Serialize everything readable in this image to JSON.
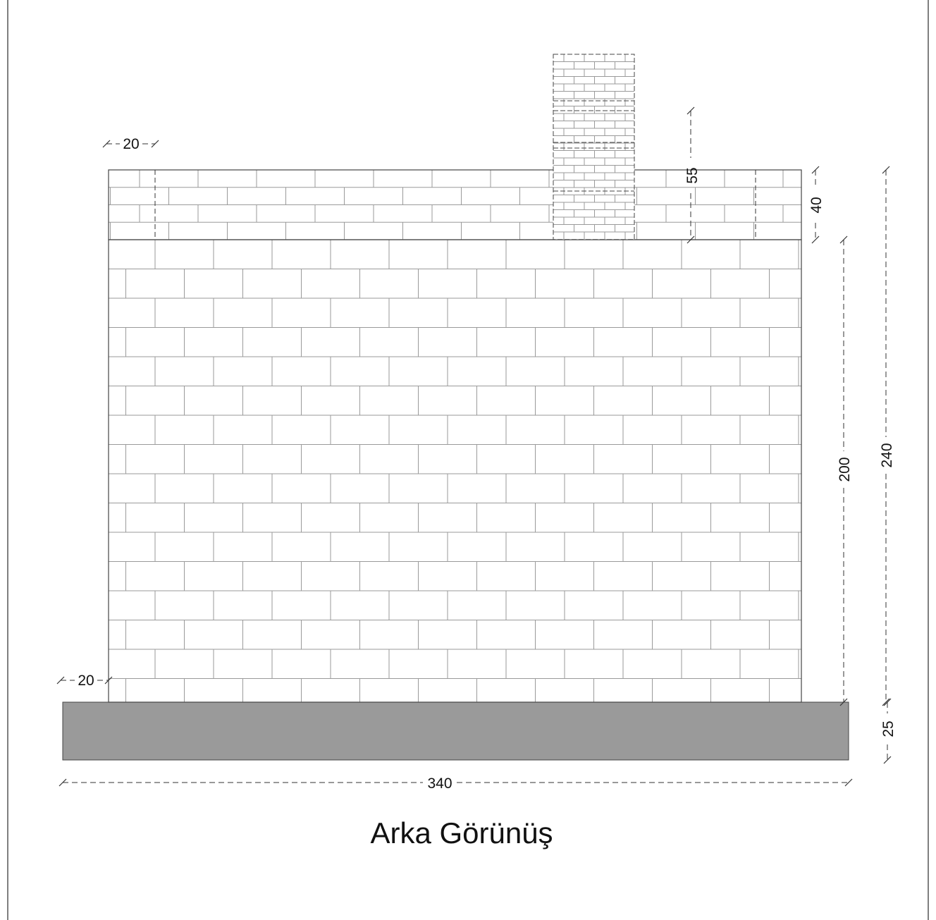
{
  "title": "Arka Görünüş",
  "colors": {
    "foundation": "#9a9a9a",
    "mortar": "#9a9a9a",
    "outline": "#444444",
    "frame": "#555555"
  },
  "dimensions": {
    "total_width": "340",
    "wall_height": "200",
    "total_height": "240",
    "parapet_height": "40",
    "chimney_height": "55",
    "foundation_height": "25",
    "top_offset": "20",
    "bottom_offset": "20"
  }
}
